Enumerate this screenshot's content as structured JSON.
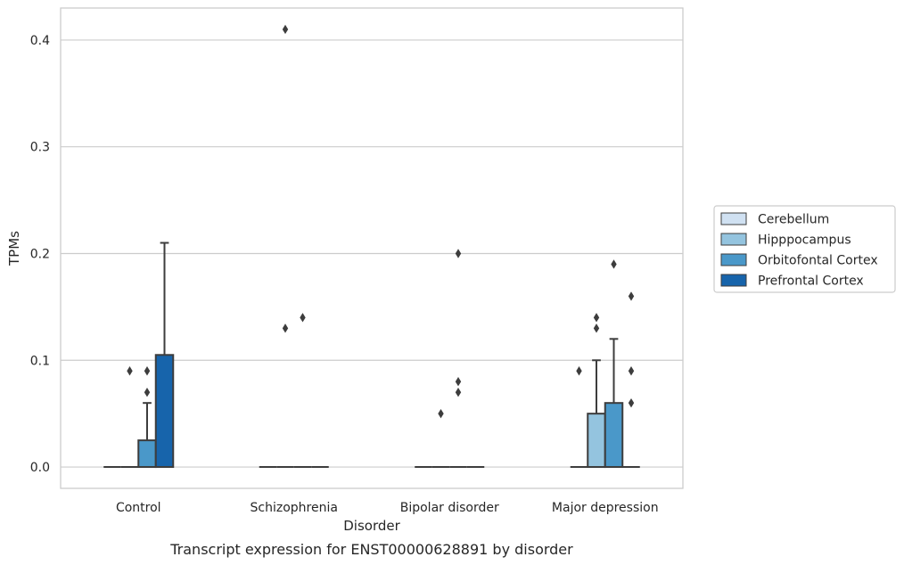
{
  "chart_data": {
    "type": "box",
    "title": "",
    "caption": "Transcript expression for ENST00000628891 by disorder",
    "xlabel": "Disorder",
    "ylabel": "TPMs",
    "ylim": [
      -0.02,
      0.43
    ],
    "yticks": [
      0.0,
      0.1,
      0.2,
      0.3,
      0.4
    ],
    "ytick_labels": [
      "0.0",
      "0.1",
      "0.2",
      "0.3",
      "0.4"
    ],
    "grid": "horizontal",
    "legend_position": "right",
    "categories": [
      "Control",
      "Schizophrenia",
      "Bipolar disorder",
      "Major depression"
    ],
    "series": [
      {
        "name": "Cerebellum",
        "color": "#d0e1f2",
        "boxes": [
          {
            "q1": 0,
            "median": 0,
            "q3": 0,
            "whisker_low": 0,
            "whisker_high": 0,
            "outliers": []
          },
          {
            "q1": 0,
            "median": 0,
            "q3": 0,
            "whisker_low": 0,
            "whisker_high": 0,
            "outliers": []
          },
          {
            "q1": 0,
            "median": 0,
            "q3": 0,
            "whisker_low": 0,
            "whisker_high": 0,
            "outliers": []
          },
          {
            "q1": 0,
            "median": 0,
            "q3": 0,
            "whisker_low": 0,
            "whisker_high": 0,
            "outliers": [
              0.09
            ]
          }
        ]
      },
      {
        "name": "Hipppocampus",
        "color": "#94c4df",
        "boxes": [
          {
            "q1": 0,
            "median": 0,
            "q3": 0,
            "whisker_low": 0,
            "whisker_high": 0,
            "outliers": [
              0.09
            ]
          },
          {
            "q1": 0,
            "median": 0,
            "q3": 0,
            "whisker_low": 0,
            "whisker_high": 0,
            "outliers": [
              0.41,
              0.13
            ]
          },
          {
            "q1": 0,
            "median": 0,
            "q3": 0,
            "whisker_low": 0,
            "whisker_high": 0,
            "outliers": [
              0.05
            ]
          },
          {
            "q1": 0,
            "median": 0,
            "q3": 0.05,
            "whisker_low": 0,
            "whisker_high": 0.1,
            "outliers": [
              0.14,
              0.13
            ]
          }
        ]
      },
      {
        "name": "Orbitofontal Cortex",
        "color": "#4a98c9",
        "boxes": [
          {
            "q1": 0,
            "median": 0,
            "q3": 0.025,
            "whisker_low": 0,
            "whisker_high": 0.06,
            "outliers": [
              0.09,
              0.07
            ]
          },
          {
            "q1": 0,
            "median": 0,
            "q3": 0,
            "whisker_low": 0,
            "whisker_high": 0,
            "outliers": [
              0.14
            ]
          },
          {
            "q1": 0,
            "median": 0,
            "q3": 0,
            "whisker_low": 0,
            "whisker_high": 0,
            "outliers": [
              0.2,
              0.08,
              0.07
            ]
          },
          {
            "q1": 0,
            "median": 0,
            "q3": 0.06,
            "whisker_low": 0,
            "whisker_high": 0.12,
            "outliers": [
              0.19
            ]
          }
        ]
      },
      {
        "name": "Prefrontal Cortex",
        "color": "#1764ab",
        "boxes": [
          {
            "q1": 0,
            "median": 0,
            "q3": 0.105,
            "whisker_low": 0,
            "whisker_high": 0.21,
            "outliers": []
          },
          {
            "q1": 0,
            "median": 0,
            "q3": 0,
            "whisker_low": 0,
            "whisker_high": 0,
            "outliers": []
          },
          {
            "q1": 0,
            "median": 0,
            "q3": 0,
            "whisker_low": 0,
            "whisker_high": 0,
            "outliers": []
          },
          {
            "q1": 0,
            "median": 0,
            "q3": 0,
            "whisker_low": 0,
            "whisker_high": 0,
            "outliers": [
              0.16,
              0.09,
              0.06
            ]
          }
        ]
      }
    ]
  }
}
